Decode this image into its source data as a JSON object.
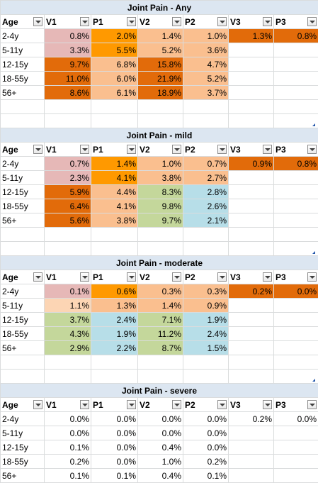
{
  "colors": {
    "pink": "#e6b8b7",
    "orange": "#ff9900",
    "peach": "#fabf8f",
    "dark_orange": "#e26b0a",
    "light_peach": "#fcd5b4",
    "green": "#c4d79b",
    "blue": "#b7dee8",
    "white": "#ffffff"
  },
  "sections": [
    {
      "title": "Joint Pain - Any",
      "headers": [
        "Age",
        "V1",
        "P1",
        "V2",
        "P2",
        "V3",
        "P3"
      ],
      "rows": [
        {
          "age": "2-4y",
          "values": [
            "0.8%",
            "2.0%",
            "1.4%",
            "1.0%",
            "1.3%",
            "0.8%"
          ],
          "fills": [
            "pink",
            "orange",
            "peach",
            "peach",
            "dark_orange",
            "dark_orange"
          ]
        },
        {
          "age": "5-11y",
          "values": [
            "3.3%",
            "5.5%",
            "5.2%",
            "3.6%",
            "",
            ""
          ],
          "fills": [
            "pink",
            "orange",
            "peach",
            "peach",
            "white",
            "white"
          ]
        },
        {
          "age": "12-15y",
          "values": [
            "9.7%",
            "6.8%",
            "15.8%",
            "4.7%",
            "",
            ""
          ],
          "fills": [
            "dark_orange",
            "peach",
            "dark_orange",
            "peach",
            "white",
            "white"
          ]
        },
        {
          "age": "18-55y",
          "values": [
            "11.0%",
            "6.0%",
            "21.9%",
            "5.2%",
            "",
            ""
          ],
          "fills": [
            "dark_orange",
            "peach",
            "dark_orange",
            "peach",
            "white",
            "white"
          ]
        },
        {
          "age": "56+",
          "values": [
            "8.6%",
            "6.1%",
            "18.9%",
            "3.7%",
            "",
            ""
          ],
          "fills": [
            "dark_orange",
            "peach",
            "dark_orange",
            "peach",
            "white",
            "white"
          ]
        }
      ]
    },
    {
      "title": "Joint Pain - mild",
      "headers": [
        "Age",
        "V1",
        "P1",
        "V2",
        "P2",
        "V3",
        "P3"
      ],
      "rows": [
        {
          "age": "2-4y",
          "values": [
            "0.7%",
            "1.4%",
            "1.0%",
            "0.7%",
            "0.9%",
            "0.8%"
          ],
          "fills": [
            "pink",
            "orange",
            "peach",
            "peach",
            "dark_orange",
            "dark_orange"
          ]
        },
        {
          "age": "5-11y",
          "values": [
            "2.3%",
            "4.1%",
            "3.8%",
            "2.7%",
            "",
            ""
          ],
          "fills": [
            "pink",
            "orange",
            "peach",
            "peach",
            "white",
            "white"
          ]
        },
        {
          "age": "12-15y",
          "values": [
            "5.9%",
            "4.4%",
            "8.3%",
            "2.8%",
            "",
            ""
          ],
          "fills": [
            "dark_orange",
            "peach",
            "green",
            "blue",
            "white",
            "white"
          ]
        },
        {
          "age": "18-55y",
          "values": [
            "6.4%",
            "4.1%",
            "9.8%",
            "2.6%",
            "",
            ""
          ],
          "fills": [
            "dark_orange",
            "peach",
            "green",
            "blue",
            "white",
            "white"
          ]
        },
        {
          "age": "56+",
          "values": [
            "5.6%",
            "3.8%",
            "9.7%",
            "2.1%",
            "",
            ""
          ],
          "fills": [
            "dark_orange",
            "peach",
            "green",
            "blue",
            "white",
            "white"
          ]
        }
      ]
    },
    {
      "title": "Joint Pain - moderate",
      "headers": [
        "Age",
        "V1",
        "P1",
        "V2",
        "P2",
        "V3",
        "P3"
      ],
      "rows": [
        {
          "age": "2-4y",
          "values": [
            "0.1%",
            "0.6%",
            "0.3%",
            "0.3%",
            "0.2%",
            "0.0%"
          ],
          "fills": [
            "pink",
            "orange",
            "peach",
            "peach",
            "dark_orange",
            "dark_orange"
          ]
        },
        {
          "age": "5-11y",
          "values": [
            "1.1%",
            "1.3%",
            "1.4%",
            "0.9%",
            "",
            ""
          ],
          "fills": [
            "light_peach",
            "peach",
            "peach",
            "peach",
            "white",
            "white"
          ]
        },
        {
          "age": "12-15y",
          "values": [
            "3.7%",
            "2.4%",
            "7.1%",
            "1.9%",
            "",
            ""
          ],
          "fills": [
            "green",
            "blue",
            "green",
            "blue",
            "white",
            "white"
          ]
        },
        {
          "age": "18-55y",
          "values": [
            "4.3%",
            "1.9%",
            "11.2%",
            "2.4%",
            "",
            ""
          ],
          "fills": [
            "green",
            "blue",
            "green",
            "blue",
            "white",
            "white"
          ]
        },
        {
          "age": "56+",
          "values": [
            "2.9%",
            "2.2%",
            "8.7%",
            "1.5%",
            "",
            ""
          ],
          "fills": [
            "green",
            "blue",
            "green",
            "blue",
            "white",
            "white"
          ]
        }
      ]
    },
    {
      "title": "Joint Pain - severe",
      "headers": [
        "Age",
        "V1",
        "P1",
        "V2",
        "P2",
        "V3",
        "P3"
      ],
      "rows": [
        {
          "age": "2-4y",
          "values": [
            "0.0%",
            "0.0%",
            "0.0%",
            "0.0%",
            "0.2%",
            "0.0%"
          ],
          "fills": [
            "white",
            "white",
            "white",
            "white",
            "white",
            "white"
          ]
        },
        {
          "age": "5-11y",
          "values": [
            "0.0%",
            "0.0%",
            "0.0%",
            "0.0%",
            "",
            ""
          ],
          "fills": [
            "white",
            "white",
            "white",
            "white",
            "white",
            "white"
          ]
        },
        {
          "age": "12-15y",
          "values": [
            "0.1%",
            "0.0%",
            "0.4%",
            "0.0%",
            "",
            ""
          ],
          "fills": [
            "white",
            "white",
            "white",
            "white",
            "white",
            "white"
          ]
        },
        {
          "age": "18-55y",
          "values": [
            "0.2%",
            "0.0%",
            "1.0%",
            "0.2%",
            "",
            ""
          ],
          "fills": [
            "white",
            "white",
            "white",
            "white",
            "white",
            "white"
          ]
        },
        {
          "age": "56+",
          "values": [
            "0.1%",
            "0.1%",
            "0.4%",
            "0.1%",
            "",
            ""
          ],
          "fills": [
            "white",
            "white",
            "white",
            "white",
            "white",
            "white"
          ]
        }
      ]
    }
  ]
}
